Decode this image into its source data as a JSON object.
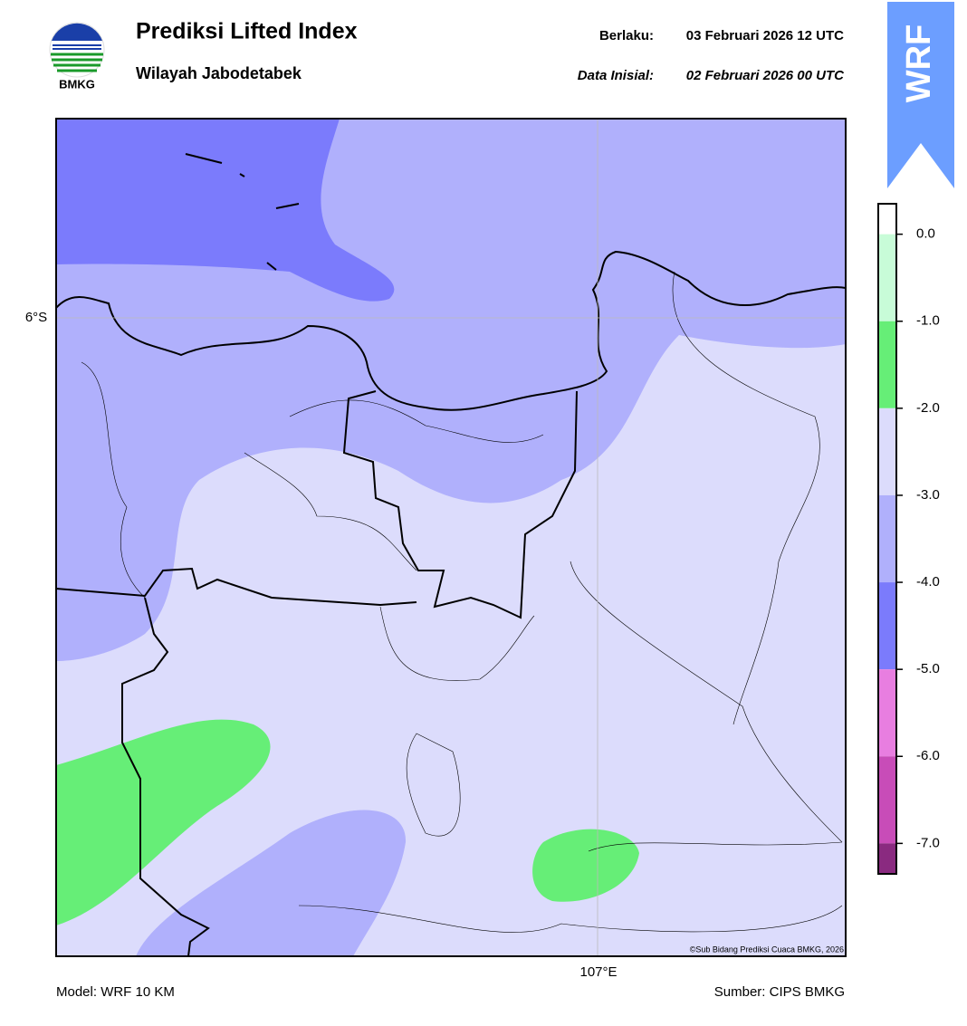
{
  "header": {
    "title": "Prediksi Lifted Index",
    "subtitle": "Wilayah Jabodetabek",
    "valid_label": "Berlaku:",
    "valid": "03 Februari 2026 12 UTC",
    "init_label": "Data Inisial:",
    "init": "02 Februari 2026 00 UTC",
    "logo": "BMKG",
    "badge": "WRF"
  },
  "map": {
    "lat_label": "6°S",
    "lon_label": "107°E",
    "credit": "©Sub Bidang Prediksi Cuaca BMKG, 2026"
  },
  "colorbar": {
    "lim": [
      -7.35,
      0.35
    ],
    "ticks": [
      {
        "value": 0,
        "label": "0.0"
      },
      {
        "value": -1,
        "label": "-1.0"
      },
      {
        "value": -2,
        "label": "-2.0"
      },
      {
        "value": -3,
        "label": "-3.0"
      },
      {
        "value": -4,
        "label": "-4.0"
      },
      {
        "value": -5,
        "label": "-5.0"
      },
      {
        "value": -6,
        "label": "-6.0"
      },
      {
        "value": -7,
        "label": "-7.0"
      }
    ],
    "colors": [
      "#ffffff",
      "#c8fcd8",
      "#66ee77",
      "#dcdcfc",
      "#b0b0fc",
      "#7b7bfc",
      "#e87ee0",
      "#c84cb8",
      "#8a2a80"
    ]
  },
  "footer": {
    "model": "Model: WRF 10 KM",
    "source": "Sumber: CIPS BMKG"
  }
}
